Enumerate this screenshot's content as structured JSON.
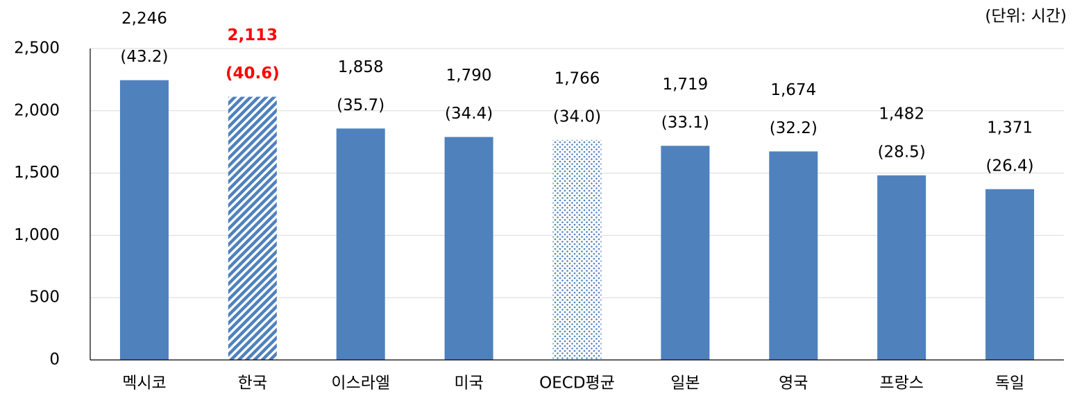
{
  "chart_data": {
    "type": "bar",
    "unit_label": "(단위: 시간)",
    "categories": [
      "멕시코",
      "한국",
      "이스라엘",
      "미국",
      "OECD평균",
      "일본",
      "영국",
      "프랑스",
      "독일"
    ],
    "values": [
      2246,
      2113,
      1858,
      1790,
      1766,
      1719,
      1674,
      1482,
      1371
    ],
    "value_labels": [
      "2,246",
      "2,113",
      "1,858",
      "1,790",
      "1,766",
      "1,719",
      "1,674",
      "1,482",
      "1,371"
    ],
    "secondary_labels": [
      "(43.2)",
      "(40.6)",
      "(35.7)",
      "(34.4)",
      "(34.0)",
      "(33.1)",
      "(32.2)",
      "(28.5)",
      "(26.4)"
    ],
    "color": "#4f81bd",
    "patterns": [
      "solid",
      "hatch",
      "solid",
      "solid",
      "dots",
      "solid",
      "solid",
      "solid",
      "solid"
    ],
    "label_colors": [
      "#000000",
      "#ff0000",
      "#000000",
      "#000000",
      "#000000",
      "#000000",
      "#000000",
      "#000000",
      "#000000"
    ],
    "ylim": [
      0,
      2500
    ],
    "yticks": [
      0,
      500,
      {
        "value": 1000,
        "label": "1,000"
      },
      {
        "value": 1500,
        "label": "1,500"
      },
      {
        "value": 2000,
        "label": "2,000"
      },
      {
        "value": 2500,
        "label": "2,500"
      }
    ],
    "grid": true
  }
}
